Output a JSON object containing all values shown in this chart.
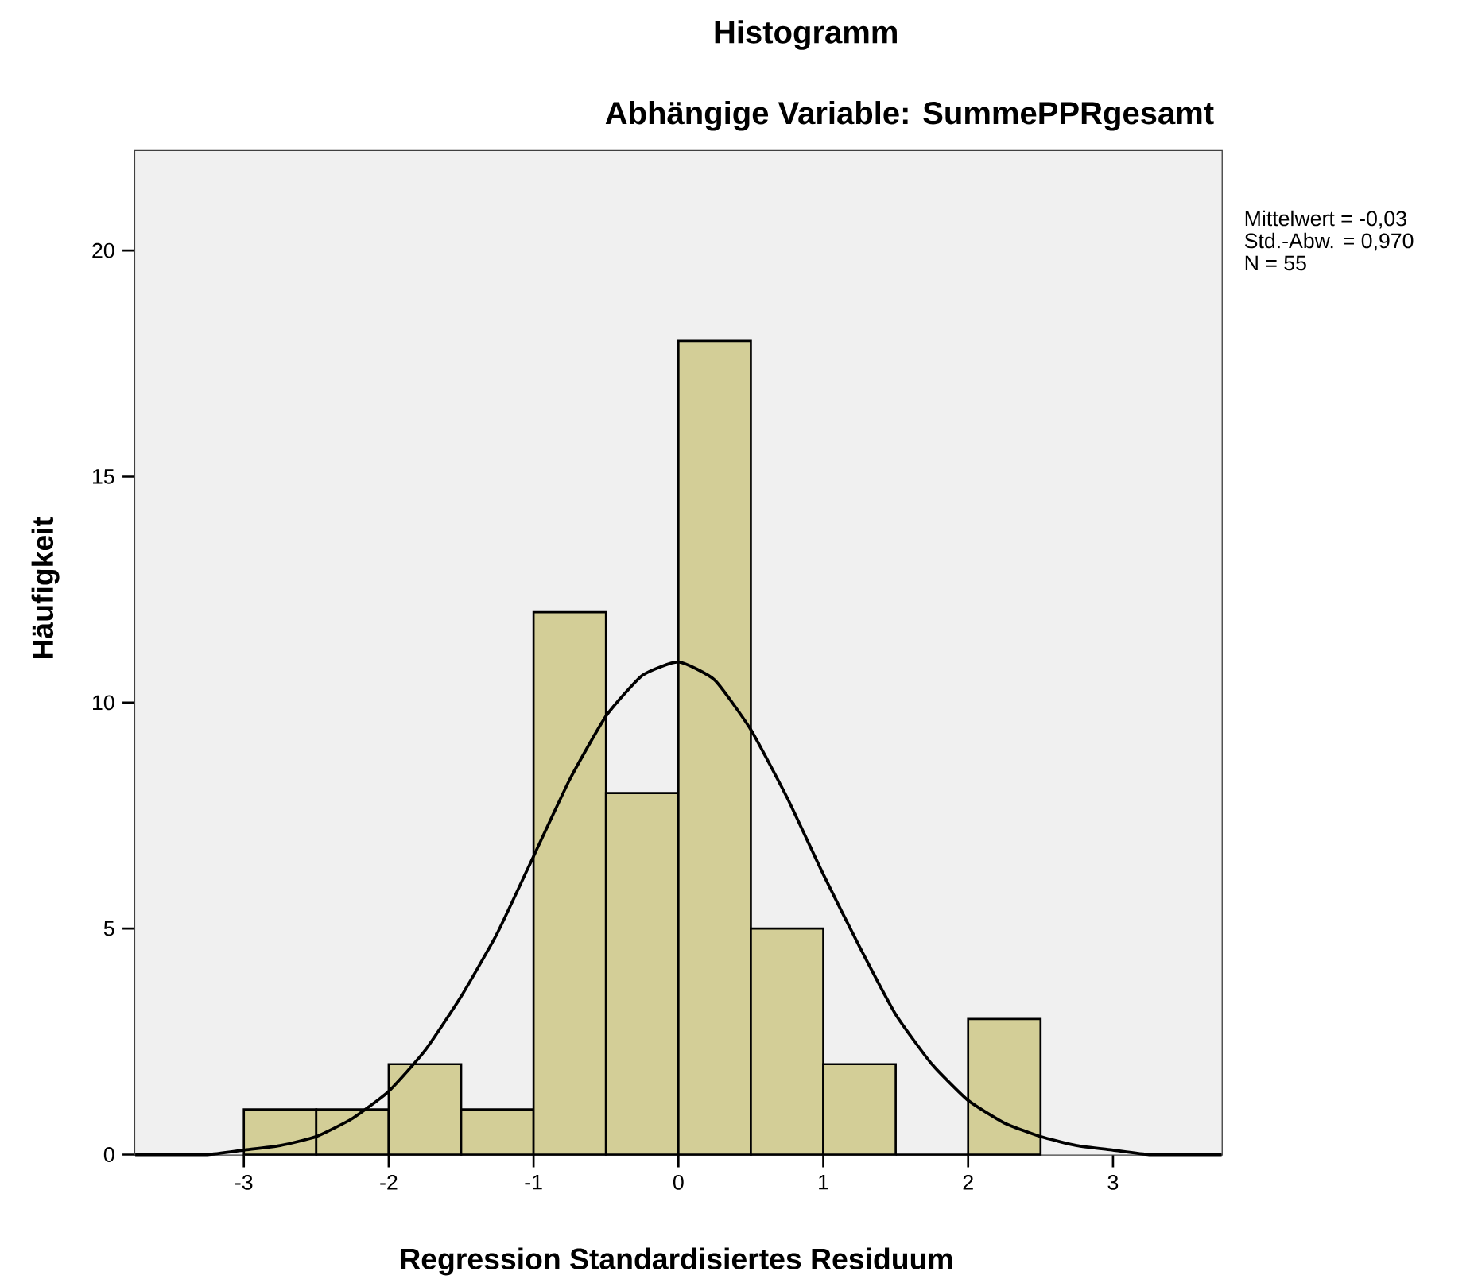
{
  "chart_data": {
    "type": "histogram",
    "title": "Histogramm",
    "subtitle": "Abhängige Variable: SummePPRgesamt",
    "xlabel": "Regression Standardisiertes Residuum",
    "ylabel": "Häufigkeit",
    "bins": [
      -3,
      -2.5,
      -2,
      -1.5,
      -1,
      -0.5,
      0,
      0.5,
      1,
      1.5,
      2,
      2.5
    ],
    "values": [
      1,
      1,
      2,
      1,
      12,
      8,
      18,
      5,
      2,
      0,
      3
    ],
    "color": "#d3ce97",
    "series": [
      {
        "type": "line",
        "color": "#000000",
        "x": [
          -3.75,
          -3.5,
          -3.25,
          -3,
          -2.75,
          -2.5,
          -2.25,
          -2,
          -1.75,
          -1.5,
          -1.25,
          -1,
          -0.75,
          -0.5,
          -0.25,
          0,
          0.25,
          0.5,
          0.75,
          1,
          1.25,
          1.5,
          1.75,
          2,
          2.25,
          2.5,
          2.75,
          3,
          3.25,
          3.5,
          3.75
        ],
        "values": [
          0.0,
          0.0,
          0.0,
          0.1,
          0.2,
          0.4,
          0.8,
          1.4,
          2.3,
          3.5,
          4.9,
          6.6,
          8.3,
          9.7,
          10.6,
          10.9,
          10.5,
          9.4,
          7.9,
          6.2,
          4.6,
          3.1,
          2.0,
          1.2,
          0.7,
          0.4,
          0.2,
          0.1,
          0.0,
          0.0,
          0.0
        ]
      }
    ],
    "xlim": [
      -3.75,
      3.75
    ],
    "ylim": [
      0,
      22.2
    ],
    "xticks": [
      -3,
      -2,
      -1,
      0,
      1,
      2,
      3
    ],
    "yticks": [
      0,
      5,
      10,
      15,
      20
    ],
    "annotations": [
      "Mittelwert = -0,03",
      "Std.-Abw. = 0,970",
      "N =  55"
    ]
  }
}
